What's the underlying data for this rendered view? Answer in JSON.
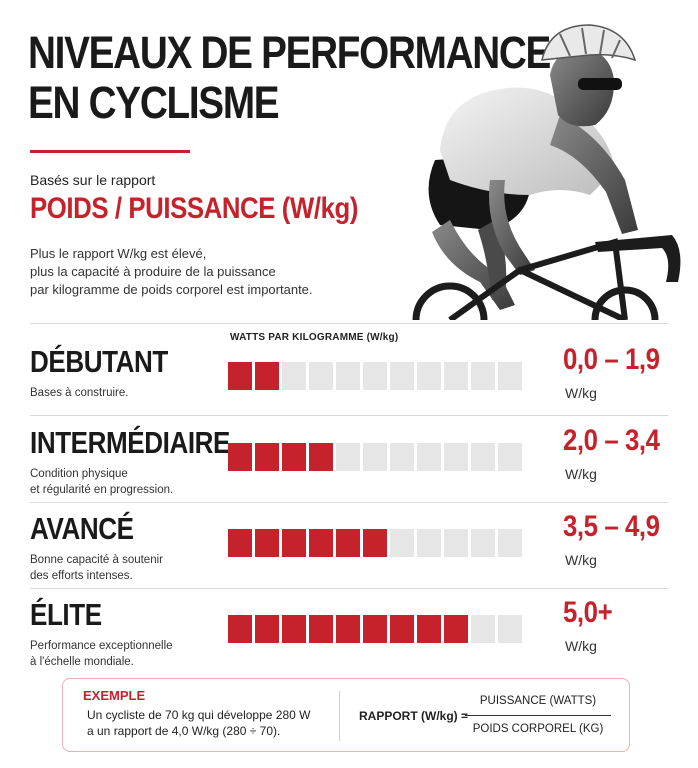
{
  "header": {
    "title_line1": "NIVEAUX DE PERFORMANCE",
    "title_line2": "EN CYCLISME",
    "basis_label": "Basés sur le rapport",
    "ratio_title": "POIDS / PUISSANCE (W/kg)",
    "intro_lines": [
      "Plus le rapport W/kg est élevé,",
      "plus la capacité à produire de la puissance",
      "par kilogramme de poids corporel est importante."
    ]
  },
  "bars_header": "WATTS PAR KILOGRAMME (W/kg)",
  "levels": [
    {
      "name": "DÉBUTANT",
      "desc_lines": [
        "Bases à construire."
      ],
      "filled": 2,
      "total": 11,
      "range": "0,0 – 1,9",
      "unit": "W/kg"
    },
    {
      "name": "INTERMÉDIAIRE",
      "desc_lines": [
        "Condition physique",
        "et régularité en progression."
      ],
      "filled": 4,
      "total": 11,
      "range": "2,0 – 3,4",
      "unit": "W/kg"
    },
    {
      "name": "AVANCÉ",
      "desc_lines": [
        "Bonne capacité à soutenir",
        "des efforts intenses."
      ],
      "filled": 6,
      "total": 11,
      "range": "3,5 – 4,9",
      "unit": "W/kg"
    },
    {
      "name": "ÉLITE",
      "desc_lines": [
        "Performance exceptionnelle",
        "à l'échelle mondiale."
      ],
      "filled": 9,
      "total": 11,
      "range": "5,0+",
      "unit": "W/kg"
    }
  ],
  "example": {
    "title": "EXEMPLE",
    "lines": [
      "Un cycliste de 70 kg qui développe 280 W",
      "a un rapport de 4,0 W/kg (280 ÷ 70)."
    ],
    "formula_label": "RAPPORT (W/kg) =",
    "numerator": "PUISSANCE (WATTS)",
    "denominator": "POIDS CORPOREL (KG)"
  },
  "colors": {
    "accent": "#c5222b",
    "segment_empty": "#e6e6e6",
    "text": "#1a1a1a"
  },
  "icons": {
    "illustration": "cyclist-photo"
  }
}
